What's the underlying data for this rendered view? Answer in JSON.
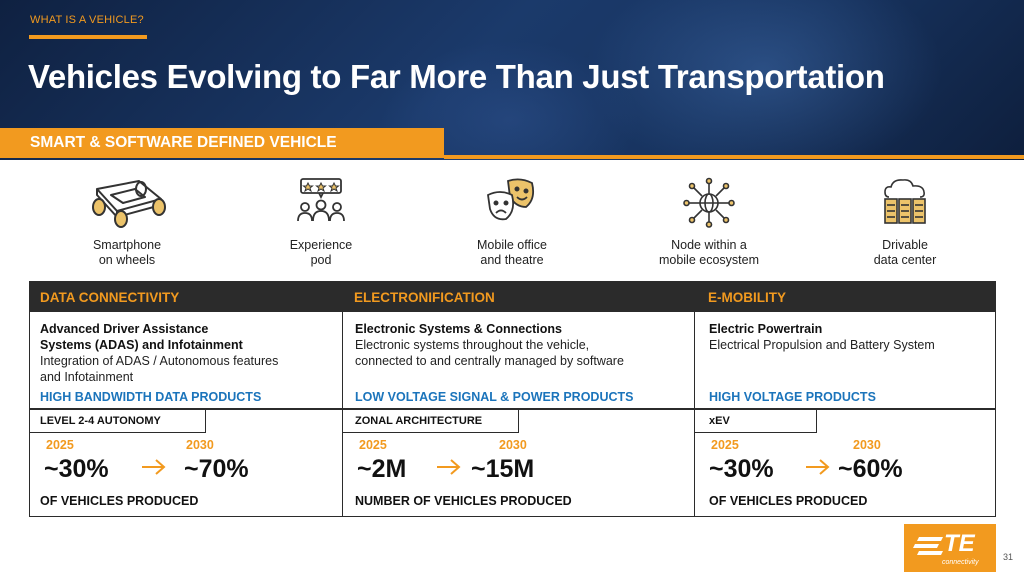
{
  "header": {
    "eyebrow": "WHAT IS A VEHICLE?",
    "title": "Vehicles Evolving to Far More Than Just Transportation",
    "band": "SMART & SOFTWARE DEFINED VEHICLE"
  },
  "icons": [
    {
      "icon": "car-platform-icon",
      "label": "Smartphone\non wheels"
    },
    {
      "icon": "audience-rating-icon",
      "label": "Experience\npod"
    },
    {
      "icon": "theatre-masks-icon",
      "label": "Mobile office\nand theatre"
    },
    {
      "icon": "network-globe-icon",
      "label": "Node within a\nmobile ecosystem"
    },
    {
      "icon": "cloud-server-icon",
      "label": "Drivable\ndata center"
    }
  ],
  "columns": [
    {
      "header": "DATA CONNECTIVITY",
      "title": "Advanced Driver Assistance\nSystems (ADAS) and Infotainment",
      "desc": "Integration of ADAS / Autonomous features\nand Infotainment",
      "products": "HIGH BANDWIDTH DATA PRODUCTS",
      "tag": "LEVEL 2-4 AUTONOMY",
      "year_from": "2025",
      "year_to": "2030",
      "value_from": "~30%",
      "value_to": "~70%",
      "footer": "OF VEHICLES PRODUCED"
    },
    {
      "header": "ELECTRONIFICATION",
      "title": "Electronic Systems & Connections",
      "desc": "Electronic systems throughout the vehicle,\nconnected to and centrally managed by software",
      "products": "LOW VOLTAGE SIGNAL & POWER PRODUCTS",
      "tag": "ZONAL ARCHITECTURE",
      "year_from": "2025",
      "year_to": "2030",
      "value_from": "~2M",
      "value_to": "~15M",
      "footer": "NUMBER OF VEHICLES PRODUCED"
    },
    {
      "header": "E-MOBILITY",
      "title": "Electric Powertrain",
      "desc": "Electrical Propulsion and Battery System",
      "products": "HIGH VOLTAGE PRODUCTS",
      "tag": "xEV",
      "year_from": "2025",
      "year_to": "2030",
      "value_from": "~30%",
      "value_to": "~60%",
      "footer": "OF VEHICLES PRODUCED"
    }
  ],
  "logo": {
    "mark": "TE",
    "sub": "connectivity"
  },
  "page_number": "31",
  "colors": {
    "accent": "#f29a1f",
    "navy": "#17335f",
    "blue": "#1b74bb",
    "dark": "#2b2b2b"
  }
}
